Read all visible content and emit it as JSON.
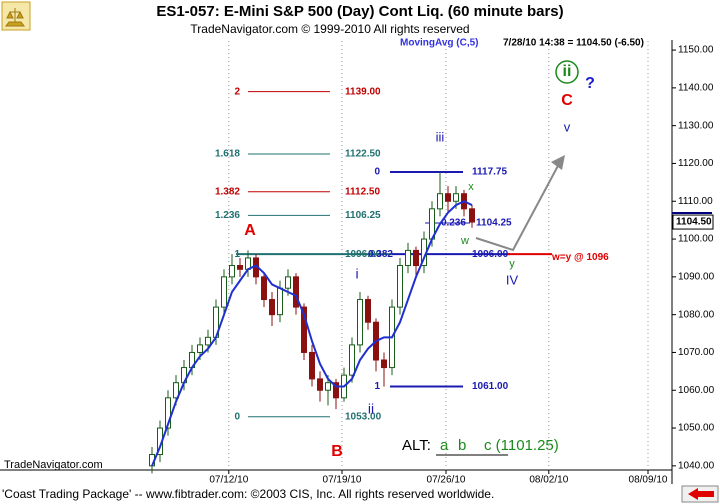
{
  "chart_data": {
    "type": "candlestick",
    "title": "ES1-057:  E-Mini S&P 500 (Day) Cont Liq.  (60 minute bars)",
    "subtitle": "TradeNavigator.com © 1999-2010 All rights reserved",
    "indicator": "MovingAvg (C,5)",
    "info": "7/28/10 14:38 = 1104.50 (-6.50)",
    "watermark": "TradeNavigator.com",
    "footer": "'Coast Trading Package' -- www.fibtrader.com: ©2003 CIS, Inc. All rights reserved worldwide.",
    "last_price": {
      "value": 1104.5,
      "label": "1104.50"
    },
    "up_color": "#1a5c1a",
    "down_color": "#8b1010",
    "ma_color": "#1f2fd0",
    "grid": true,
    "x": [
      19,
      20,
      21,
      22,
      23,
      24,
      25,
      26,
      27,
      28,
      29,
      30,
      31,
      32,
      33,
      34,
      35,
      36,
      37,
      38,
      39,
      40,
      41,
      42,
      43,
      44,
      45,
      46,
      47,
      48,
      49,
      50,
      51,
      52,
      53,
      54,
      55,
      56,
      57,
      58,
      59
    ],
    "open": [
      1040,
      1043,
      1050,
      1058,
      1062,
      1066,
      1070,
      1072,
      1074,
      1082,
      1090,
      1093,
      1092,
      1095,
      1090,
      1084,
      1080,
      1087,
      1090,
      1082,
      1070,
      1063,
      1060,
      1062,
      1058,
      1064,
      1072,
      1084,
      1078,
      1068,
      1066,
      1082,
      1093,
      1097,
      1093,
      1100,
      1108,
      1112,
      1110,
      1112,
      1108
    ],
    "high": [
      1045,
      1052,
      1060,
      1064,
      1068,
      1072,
      1074,
      1076,
      1084,
      1092,
      1096,
      1095,
      1097,
      1096,
      1091,
      1086,
      1089,
      1092,
      1091,
      1083,
      1072,
      1065,
      1064,
      1063,
      1066,
      1074,
      1086,
      1085,
      1079,
      1070,
      1084,
      1095,
      1099,
      1098,
      1102,
      1110,
      1117.75,
      1114,
      1114,
      1113,
      1109
    ],
    "low": [
      1038,
      1041,
      1048,
      1056,
      1060,
      1064,
      1068,
      1070,
      1072,
      1080,
      1088,
      1090,
      1090,
      1088,
      1082,
      1077,
      1078,
      1085,
      1080,
      1068,
      1061,
      1057,
      1056,
      1055,
      1057,
      1062,
      1070,
      1076,
      1065,
      1061,
      1064,
      1080,
      1091,
      1090,
      1091,
      1098,
      1106,
      1107,
      1108,
      1106,
      1103
    ],
    "close": [
      1043,
      1050,
      1058,
      1062,
      1066,
      1070,
      1072,
      1074,
      1082,
      1090,
      1093,
      1092,
      1095,
      1090,
      1084,
      1080,
      1087,
      1090,
      1082,
      1070,
      1063,
      1060,
      1062,
      1058,
      1064,
      1072,
      1084,
      1078,
      1068,
      1066,
      1082,
      1093,
      1097,
      1093,
      1100,
      1108,
      1112,
      1110,
      1112,
      1108,
      1104.5
    ],
    "ma": [
      1040,
      1045,
      1051,
      1057,
      1062,
      1066,
      1069,
      1071,
      1074,
      1080,
      1086,
      1089,
      1092,
      1093,
      1091,
      1088,
      1087,
      1086,
      1085,
      1080,
      1073,
      1067,
      1063,
      1061,
      1061,
      1063,
      1068,
      1071,
      1073,
      1074,
      1074,
      1078,
      1084,
      1090,
      1095,
      1100,
      1104,
      1107,
      1109,
      1110,
      1109
    ],
    "xlim": [
      0,
      84
    ],
    "xticks": [
      {
        "value": 28.6,
        "label": "07/12/10"
      },
      {
        "value": 42.75,
        "label": "07/19/10"
      },
      {
        "value": 55.75,
        "label": "07/26/10"
      },
      {
        "value": 68.6,
        "label": "08/02/10"
      },
      {
        "value": 81,
        "label": "08/09/10"
      }
    ],
    "ylim": [
      1038.9,
      1152.4
    ],
    "yticks": [
      {
        "value": 1040,
        "label": "1040.00"
      },
      {
        "value": 1050,
        "label": "1050.00"
      },
      {
        "value": 1060,
        "label": "1060.00"
      },
      {
        "value": 1070,
        "label": "1070.00"
      },
      {
        "value": 1080,
        "label": "1080.00"
      },
      {
        "value": 1090,
        "label": "1090.00"
      },
      {
        "value": 1100,
        "label": "1100.00"
      },
      {
        "value": 1110,
        "label": "1110.00"
      },
      {
        "value": 1120,
        "label": "1120.00"
      },
      {
        "value": 1130,
        "label": "1130.00"
      },
      {
        "value": 1140,
        "label": "1140.00"
      },
      {
        "value": 1150,
        "label": "1150.00"
      }
    ],
    "fib_levels": [
      {
        "ratio": "2",
        "value": 1139,
        "value_label": "1139.00",
        "color": "#c00000"
      },
      {
        "ratio": "1.618",
        "value": 1122.5,
        "value_label": "1122.50",
        "color": "#207070"
      },
      {
        "ratio": "1.382",
        "value": 1112.5,
        "value_label": "1112.50",
        "color": "#c00000"
      },
      {
        "ratio": "1.236",
        "value": 1106.25,
        "value_label": "1106.25",
        "color": "#207070"
      },
      {
        "ratio": "1",
        "value": 1096,
        "value_label": "1096.00",
        "color": "#207070"
      },
      {
        "ratio": "0",
        "value": 1053,
        "value_label": "1053.00",
        "color": "#207070"
      },
      {
        "ratio": "0",
        "value": 1117.75,
        "value_label": "1117.75",
        "color": "#1a1ab0"
      },
      {
        "ratio": "0.236",
        "value": 1104.25,
        "value_label": "1104.25",
        "color": "#1a1ab0"
      },
      {
        "ratio": "0.382",
        "value": 1096,
        "value_label": "1096.00",
        "color": "#1a1ab0"
      },
      {
        "ratio": "1",
        "value": 1061,
        "value_label": "1061.00",
        "color": "#1a1ab0"
      },
      {
        "ratio": "w=y @ 1096",
        "value": 1096,
        "color": "#e00000"
      }
    ],
    "wave_labels": [
      {
        "text": "A",
        "color": "#e00000"
      },
      {
        "text": "B",
        "color": "#e00000"
      },
      {
        "text": "C",
        "color": "#e00000"
      },
      {
        "text": "ii",
        "color": "#1a8a1a"
      },
      {
        "text": "?",
        "color": "#1a1ad0"
      },
      {
        "text": "iii",
        "color": "#1a1ab0"
      },
      {
        "text": "v",
        "color": "#1a1ab0"
      },
      {
        "text": "i",
        "color": "#1a1ab0"
      },
      {
        "text": "ii",
        "color": "#1a1ab0"
      },
      {
        "text": "IV",
        "color": "#1a1ab0"
      },
      {
        "text": "x",
        "color": "#1a8a1a"
      },
      {
        "text": "w",
        "color": "#1a8a1a"
      },
      {
        "text": "y",
        "color": "#1a8a1a"
      }
    ],
    "alt": {
      "prefix": "ALT:",
      "a": "a",
      "b": "b",
      "c": "c (1101.25)"
    }
  }
}
